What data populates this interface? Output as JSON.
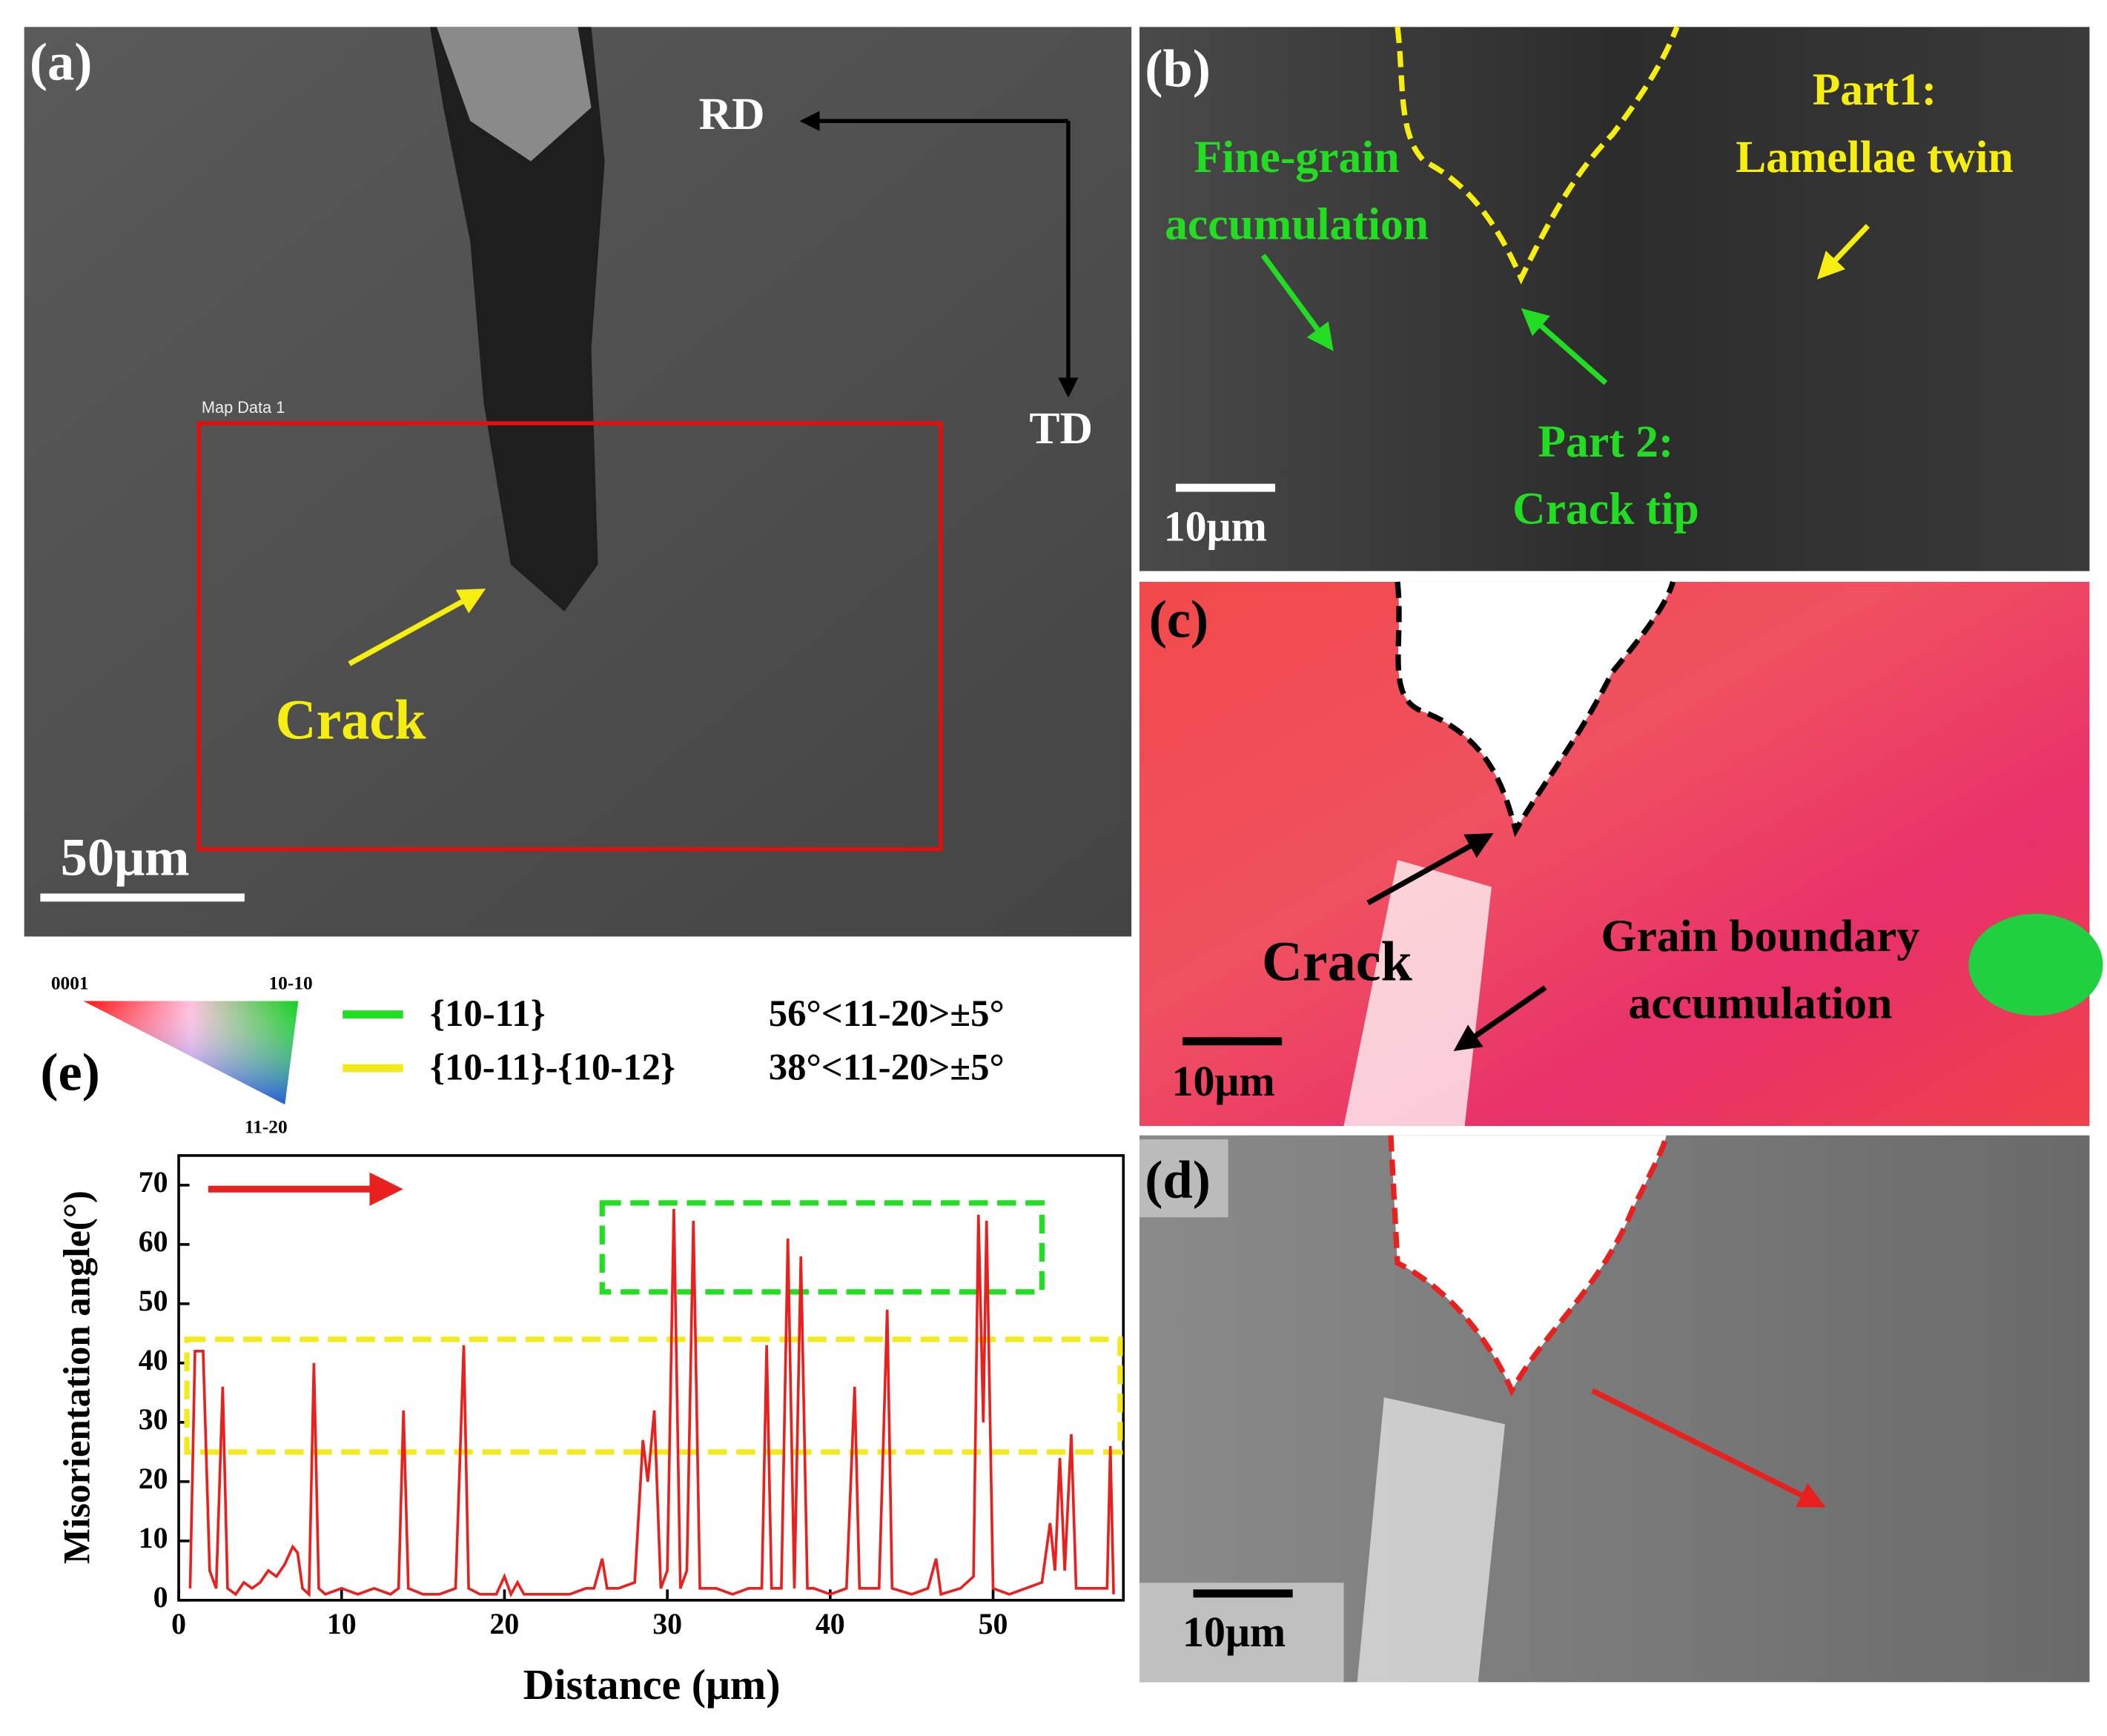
{
  "panel_a": {
    "label": "(a)",
    "map_label": "Map Data 1",
    "rd": "RD",
    "td": "TD",
    "crack": "Crack",
    "scale": "50μm"
  },
  "panel_b": {
    "label": "(b)",
    "fine_grain": [
      "Fine-grain",
      "accumulation"
    ],
    "part1": [
      "Part1:",
      "Lamellae twin"
    ],
    "part2": [
      "Part 2:",
      "Crack tip"
    ],
    "scale": "10μm"
  },
  "panel_c": {
    "label": "(c)",
    "crack": "Crack",
    "grain_boundary": [
      "Grain boundary",
      "accumulation"
    ],
    "scale": "10μm"
  },
  "panel_d": {
    "label": "(d)",
    "scale": "10μm"
  },
  "ipf_key": {
    "corner_0001": "0001",
    "corner_10_10": "10-10",
    "corner_11_20": "11-20"
  },
  "chart_data": {
    "type": "line",
    "label": "(e)",
    "x_label": "Distance (μm)",
    "y_label": "Misorientation angle(°)",
    "legend": [
      {
        "name": "{10-11}",
        "color": "#22dd22",
        "description": "56°<11-20>±5°"
      },
      {
        "name": "{10-11}-{10-12}",
        "color": "#f2ea1c",
        "description": "38°<11-20>±5°"
      }
    ],
    "regions": [
      {
        "color": "#22dd22",
        "x": [
          26,
          53
        ],
        "y": [
          52,
          67
        ]
      },
      {
        "color": "#f2ea1c",
        "x": [
          0.5,
          57.8
        ],
        "y": [
          25,
          44
        ]
      }
    ],
    "xlim": [
      0,
      58
    ],
    "ylim": [
      0,
      75
    ],
    "xticks": [
      0,
      10,
      20,
      30,
      40,
      50
    ],
    "yticks": [
      0,
      10,
      20,
      30,
      40,
      50,
      60,
      70
    ],
    "x": [
      0.7,
      1.0,
      1.5,
      1.9,
      2.3,
      2.7,
      3.0,
      3.5,
      4.0,
      4.5,
      5.0,
      5.5,
      6.0,
      6.5,
      7.0,
      7.3,
      7.6,
      8.0,
      8.3,
      8.6,
      9.0,
      10,
      11,
      12,
      13,
      13.5,
      13.8,
      14.1,
      15,
      16,
      17,
      17.5,
      17.8,
      18.5,
      19.5,
      20,
      20.4,
      20.8,
      21.2,
      22,
      24,
      25,
      25.5,
      26,
      26.3,
      27,
      28,
      28.5,
      28.8,
      29.2,
      29.6,
      30,
      30.4,
      30.8,
      31.2,
      31.6,
      32,
      33,
      34,
      35,
      35.8,
      36.1,
      36.4,
      37,
      37.4,
      37.8,
      38.2,
      38.6,
      39,
      40,
      41,
      41.5,
      41.8,
      43,
      43.5,
      43.8,
      45,
      46,
      46.5,
      46.8,
      48,
      48.8,
      49.1,
      49.4,
      49.6,
      50,
      51,
      52,
      53,
      53.5,
      53.8,
      54.1,
      54.4,
      54.8,
      55.1,
      56,
      57,
      57.2,
      57.4
    ],
    "series": [
      {
        "color": "#e8201e",
        "values": [
          2,
          42,
          42,
          5,
          2,
          36,
          2,
          1,
          3,
          2,
          3,
          5,
          4,
          6,
          9,
          8,
          2,
          1,
          40,
          2,
          1,
          2,
          1,
          2,
          1,
          2,
          32,
          2,
          1,
          1,
          2,
          43,
          2,
          1,
          1,
          4,
          1,
          3,
          1,
          1,
          1,
          2,
          2,
          7,
          2,
          2,
          3,
          27,
          20,
          32,
          2,
          5,
          66,
          2,
          5,
          64,
          2,
          2,
          1,
          2,
          2,
          43,
          2,
          2,
          61,
          2,
          58,
          2,
          2,
          1,
          2,
          36,
          2,
          2,
          49,
          2,
          1,
          2,
          7,
          1,
          2,
          4,
          65,
          30,
          64,
          2,
          1,
          2,
          3,
          13,
          5,
          24,
          5,
          28,
          2,
          2,
          2,
          26,
          1
        ]
      }
    ]
  }
}
